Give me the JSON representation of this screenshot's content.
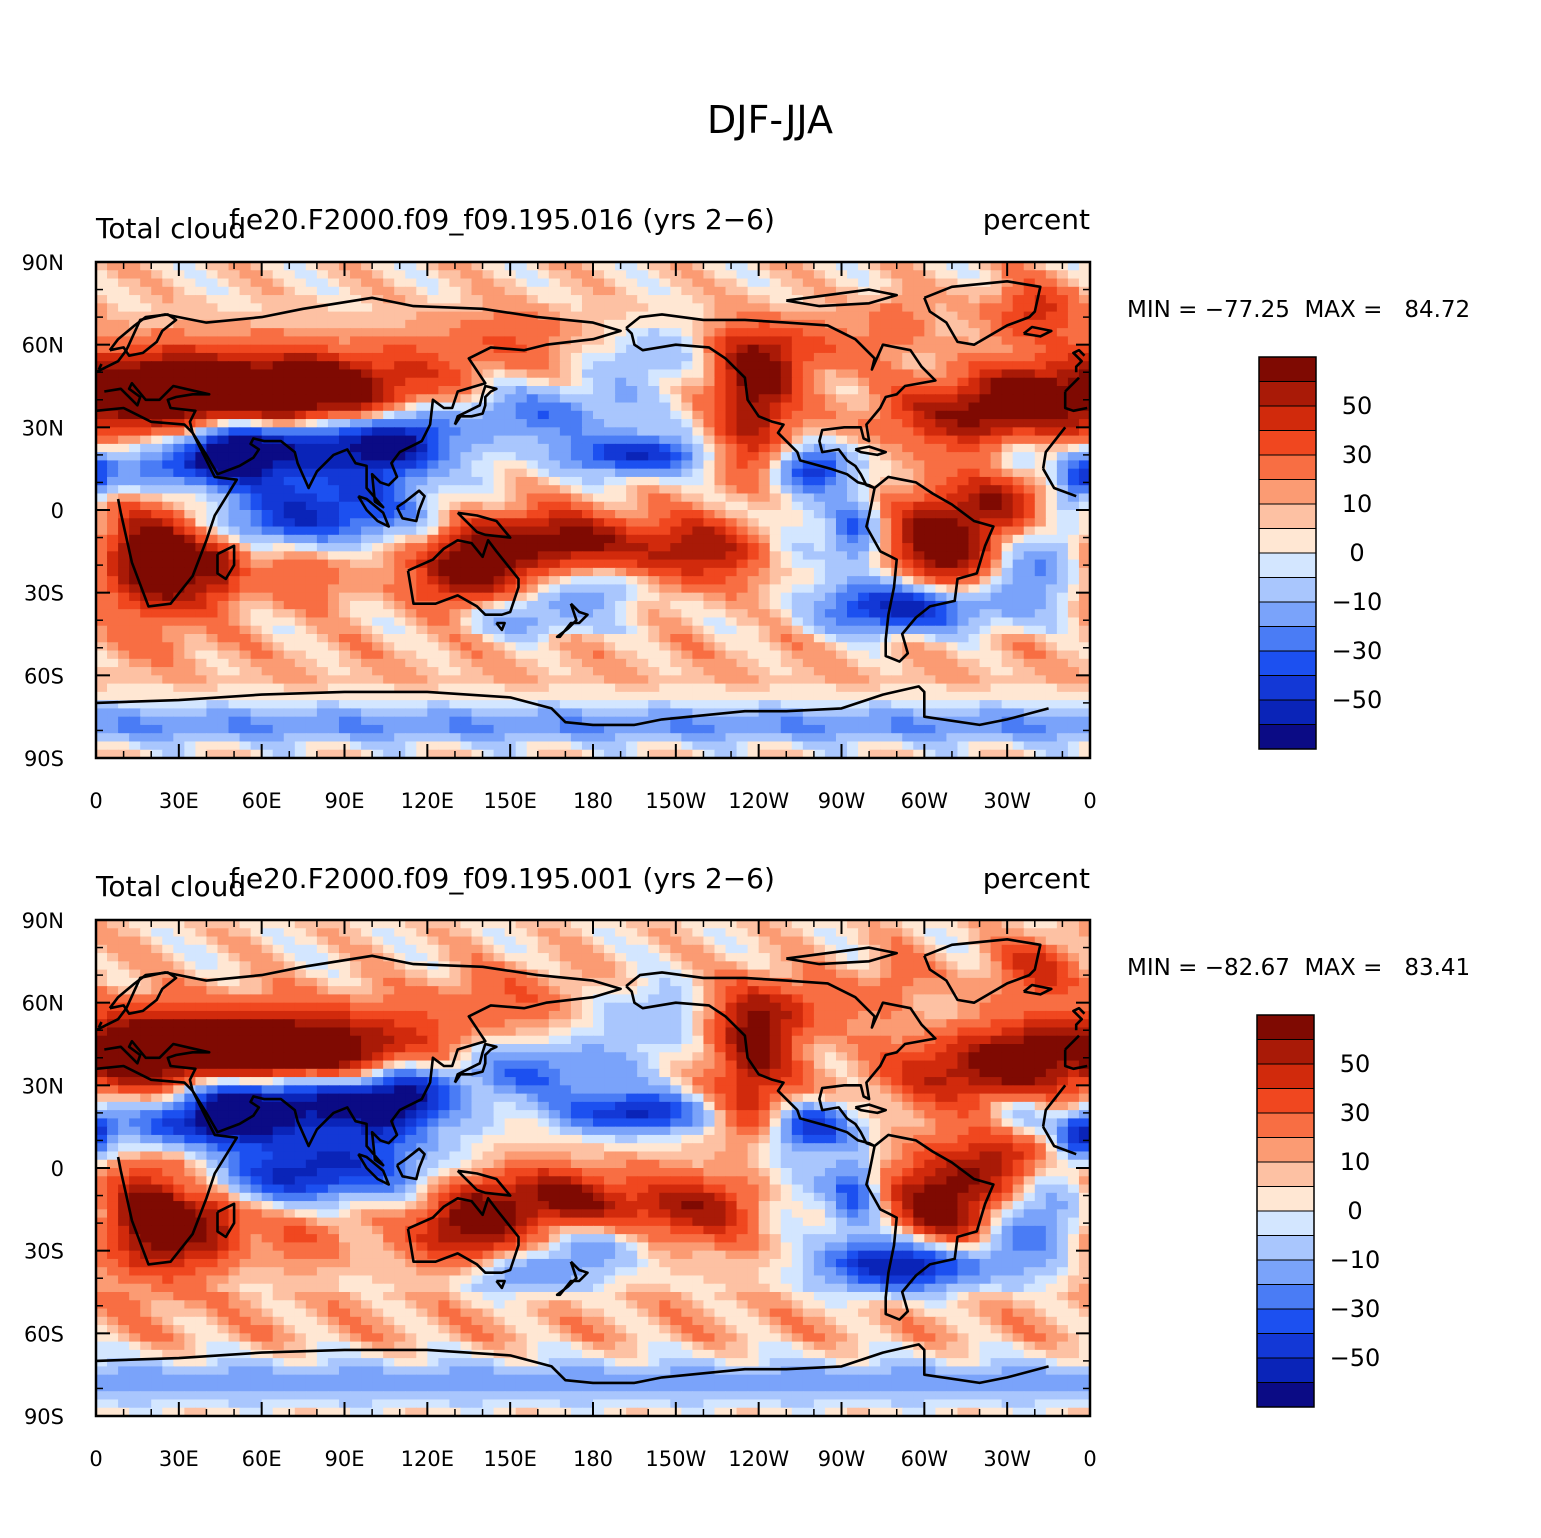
{
  "figure": {
    "title": "DJF-JJA"
  },
  "colors": {
    "levels": [
      "#0b0b85",
      "#0a24b8",
      "#1338d6",
      "#1c50f0",
      "#4a7cf5",
      "#7aa3fa",
      "#a9c6fd",
      "#d3e6ff",
      "#ffe7d3",
      "#fdc1a3",
      "#fb9b73",
      "#f86e43",
      "#f0471f",
      "#d12a0c",
      "#a91a07",
      "#7f0a02"
    ],
    "coast": "#000000"
  },
  "axes": {
    "lat_ticks": [
      "90N",
      "60N",
      "30N",
      "0",
      "30S",
      "60S",
      "90S"
    ],
    "lon_ticks": [
      "0",
      "30E",
      "60E",
      "90E",
      "120E",
      "150E",
      "180",
      "150W",
      "120W",
      "90W",
      "60W",
      "30W",
      "0"
    ]
  },
  "colorbar": {
    "labels": [
      "50",
      "30",
      "10",
      "0",
      "−10",
      "−30",
      "−50"
    ]
  },
  "panels": [
    {
      "left_title": "Total cloud",
      "center_title": "f.e20.F2000.f09_f09.195.016 (yrs 2−6)",
      "right_title": "percent",
      "stats": "MIN = −77.25  MAX =   84.72",
      "min": -77.25,
      "max": 84.72
    },
    {
      "left_title": "Total cloud",
      "center_title": "f.e20.F2000.f09_f09.195.001 (yrs 2−6)",
      "right_title": "percent",
      "stats": "MIN = −82.67  MAX =   83.41",
      "min": -82.67,
      "max": 83.41
    }
  ],
  "chart_data": {
    "type": "heatmap",
    "title": "DJF-JJA",
    "variable": "Total cloud",
    "units": "percent",
    "contour_levels": [
      -70,
      -60,
      -50,
      -40,
      -30,
      -20,
      -10,
      -5,
      0,
      5,
      10,
      20,
      30,
      40,
      50,
      60,
      70
    ],
    "x": {
      "range": [
        0,
        360
      ],
      "ticks": [
        "0",
        "30E",
        "60E",
        "90E",
        "120E",
        "150E",
        "180",
        "150W",
        "120W",
        "90W",
        "60W",
        "30W",
        "0"
      ]
    },
    "y": {
      "range": [
        -90,
        90
      ],
      "ticks": [
        "90N",
        "60N",
        "30N",
        "0",
        "30S",
        "60S",
        "90S"
      ]
    },
    "panels": [
      {
        "case": "f.e20.F2000.f09_f09.195.016 (yrs 2−6)",
        "min": -77.25,
        "max": 84.72
      },
      {
        "case": "f.e20.F2000.f09_f09.195.001 (yrs 2−6)",
        "min": -82.67,
        "max": 83.41
      }
    ]
  }
}
